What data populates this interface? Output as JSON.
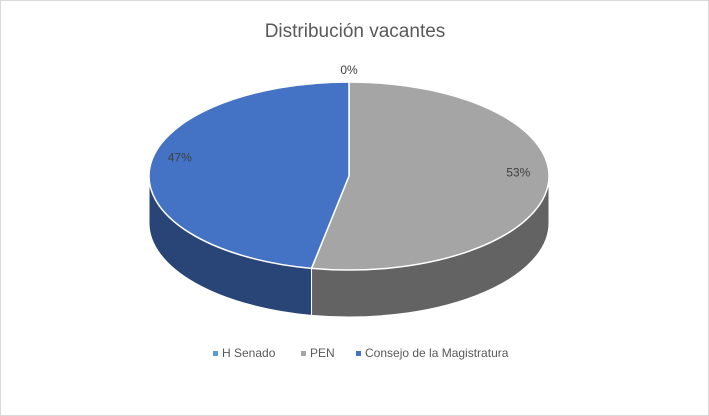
{
  "chart_data": {
    "type": "pie",
    "title": "Distribución vacantes",
    "categories": [
      "H Senado",
      "PEN",
      "Consejo de la Magistratura"
    ],
    "values": [
      0,
      53,
      47
    ],
    "value_labels": [
      "0%",
      "53%",
      "47%"
    ],
    "colors": [
      "#5b9bd5",
      "#a5a5a5",
      "#4472c4"
    ],
    "legend": "bottom"
  }
}
